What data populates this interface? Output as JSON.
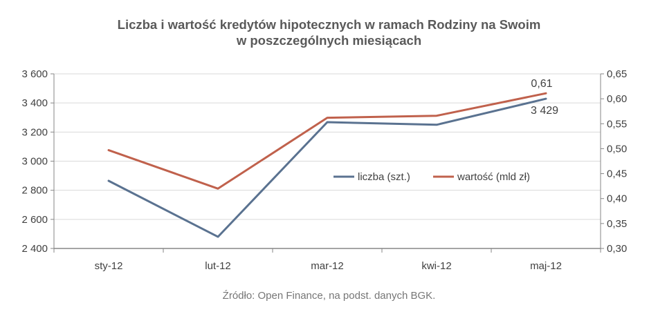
{
  "chart_data": {
    "type": "line",
    "title_line1": "Liczba i wartość kredytów hipotecznych w ramach Rodziny na Swoim",
    "title_line2": "w poszczególnych miesiącach",
    "categories": [
      "sty-12",
      "lut-12",
      "mar-12",
      "kwi-12",
      "maj-12"
    ],
    "series": [
      {
        "name": "liczba (szt.)",
        "axis": "left",
        "color": "#5a7290",
        "values": [
          2865,
          2480,
          3268,
          3250,
          3429
        ]
      },
      {
        "name": "wartość (mld zł)",
        "axis": "right",
        "color": "#c0614c",
        "values": [
          0.497,
          0.42,
          0.562,
          0.566,
          0.611
        ]
      }
    ],
    "y_left": {
      "min": 2400,
      "max": 3600,
      "step": 200,
      "tick_labels": [
        "2 400",
        "2 600",
        "2 800",
        "3 000",
        "3 200",
        "3 400",
        "3 600"
      ]
    },
    "y_right": {
      "min": 0.3,
      "max": 0.65,
      "step": 0.05,
      "tick_labels": [
        "0,30",
        "0,35",
        "0,40",
        "0,45",
        "0,50",
        "0,55",
        "0,60",
        "0,65"
      ]
    },
    "data_labels": {
      "value_last": "0,61",
      "count_last": "3 429"
    },
    "legend_position": "inside-right",
    "grid": "horizontal",
    "source": "Źródło: Open Finance, na podst. danych BGK."
  }
}
